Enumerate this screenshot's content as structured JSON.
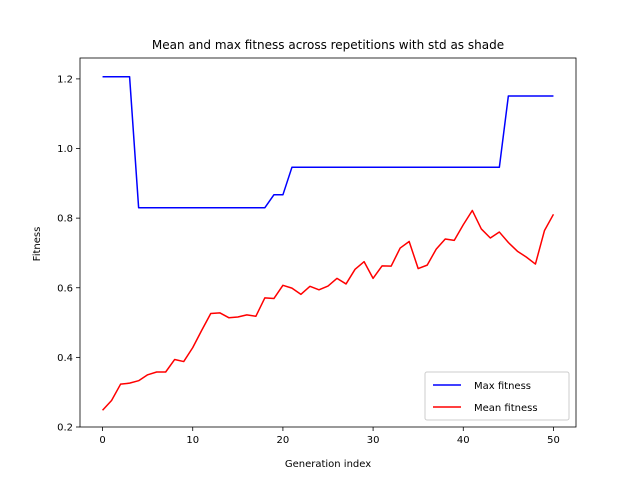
{
  "chart_data": {
    "type": "line",
    "title": "Mean and max fitness across repetitions with std as shade",
    "xlabel": "Generation index",
    "ylabel": "Fitness",
    "xlim": [
      -2.5,
      52.5
    ],
    "ylim": [
      0.2,
      1.26
    ],
    "xticks": [
      0,
      10,
      20,
      30,
      40,
      50
    ],
    "xtick_labels": [
      "0",
      "10",
      "20",
      "30",
      "40",
      "50"
    ],
    "yticks": [
      0.2,
      0.4,
      0.6,
      0.8,
      1.0,
      1.2
    ],
    "ytick_labels": [
      "0.2",
      "0.4",
      "0.6",
      "0.8",
      "1.0",
      "1.2"
    ],
    "grid": false,
    "legend_position": "lower-right",
    "series": [
      {
        "name": "Max fitness",
        "color": "#0000ff",
        "x": [
          0,
          1,
          2,
          3,
          4,
          5,
          6,
          7,
          8,
          9,
          10,
          11,
          12,
          13,
          14,
          15,
          16,
          17,
          18,
          19,
          20,
          21,
          22,
          23,
          24,
          25,
          26,
          27,
          28,
          29,
          30,
          31,
          32,
          33,
          34,
          35,
          36,
          37,
          38,
          39,
          40,
          41,
          42,
          43,
          44,
          45,
          46,
          47,
          48,
          49,
          50
        ],
        "values": [
          1.206,
          1.206,
          1.206,
          1.206,
          0.83,
          0.83,
          0.83,
          0.83,
          0.83,
          0.83,
          0.83,
          0.83,
          0.83,
          0.83,
          0.83,
          0.83,
          0.83,
          0.83,
          0.83,
          0.867,
          0.867,
          0.946,
          0.946,
          0.946,
          0.946,
          0.946,
          0.946,
          0.946,
          0.946,
          0.946,
          0.946,
          0.946,
          0.946,
          0.946,
          0.946,
          0.946,
          0.946,
          0.946,
          0.946,
          0.946,
          0.946,
          0.946,
          0.946,
          0.946,
          0.946,
          1.151,
          1.151,
          1.151,
          1.151,
          1.151,
          1.151
        ]
      },
      {
        "name": "Mean fitness",
        "color": "#ff0000",
        "x": [
          0,
          1,
          2,
          3,
          4,
          5,
          6,
          7,
          8,
          9,
          10,
          11,
          12,
          13,
          14,
          15,
          16,
          17,
          18,
          19,
          20,
          21,
          22,
          23,
          24,
          25,
          26,
          27,
          28,
          29,
          30,
          31,
          32,
          33,
          34,
          35,
          36,
          37,
          38,
          39,
          40,
          41,
          42,
          43,
          44,
          45,
          46,
          47,
          48,
          49,
          50
        ],
        "values": [
          0.248,
          0.276,
          0.323,
          0.326,
          0.333,
          0.35,
          0.358,
          0.358,
          0.394,
          0.388,
          0.428,
          0.478,
          0.526,
          0.528,
          0.514,
          0.516,
          0.522,
          0.518,
          0.571,
          0.569,
          0.607,
          0.599,
          0.581,
          0.604,
          0.594,
          0.605,
          0.627,
          0.611,
          0.653,
          0.675,
          0.627,
          0.663,
          0.662,
          0.714,
          0.733,
          0.655,
          0.665,
          0.711,
          0.74,
          0.736,
          0.781,
          0.822,
          0.769,
          0.743,
          0.76,
          0.73,
          0.705,
          0.688,
          0.668,
          0.764,
          0.811
        ]
      }
    ]
  }
}
